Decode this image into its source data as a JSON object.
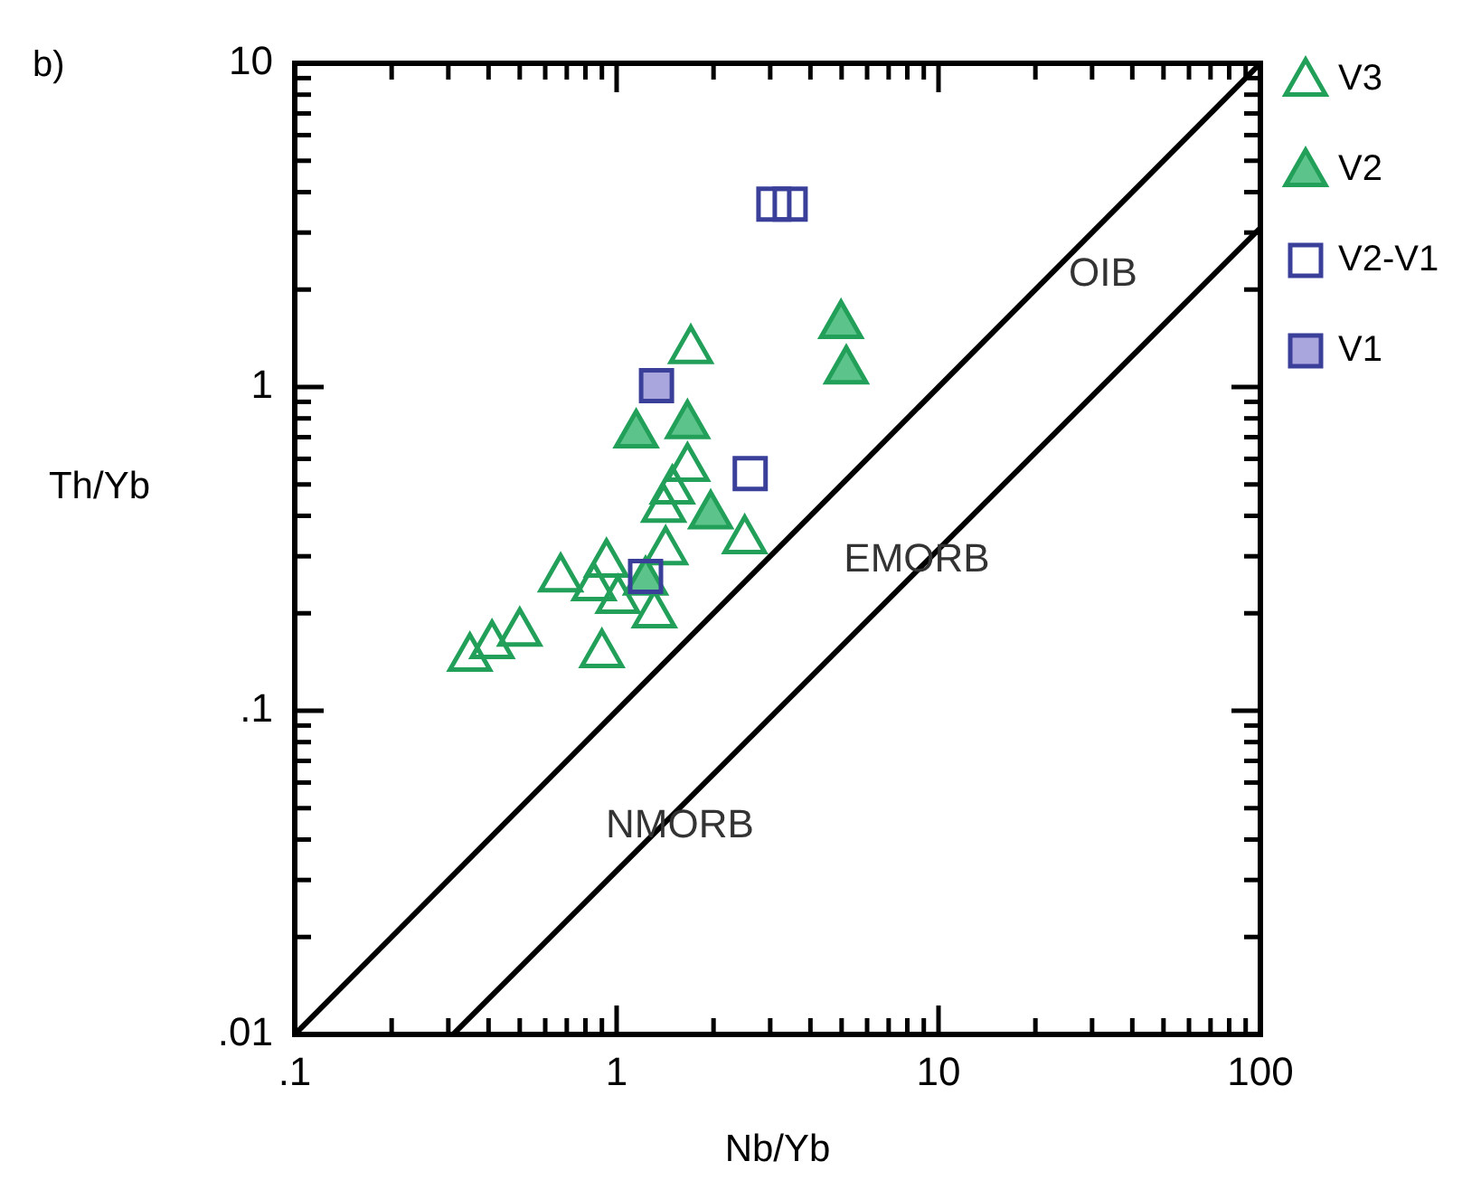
{
  "chart_data": {
    "type": "scatter",
    "xlabel": "Nb/Yb",
    "ylabel": "Th/Yb",
    "log": "xy",
    "xlim": [
      0.1,
      100
    ],
    "ylim": [
      0.01,
      10
    ],
    "xticks": [
      {
        "value": 0.1,
        "label": ".1"
      },
      {
        "value": 0.2,
        "label": null
      },
      {
        "value": 0.3,
        "label": null
      },
      {
        "value": 0.4,
        "label": null
      },
      {
        "value": 0.5,
        "label": null
      },
      {
        "value": 0.6,
        "label": null
      },
      {
        "value": 0.7,
        "label": null
      },
      {
        "value": 0.8,
        "label": null
      },
      {
        "value": 0.9,
        "label": null
      },
      1,
      {
        "value": 2,
        "label": null
      },
      {
        "value": 3,
        "label": null
      },
      {
        "value": 4,
        "label": null
      },
      {
        "value": 5,
        "label": null
      },
      {
        "value": 6,
        "label": null
      },
      {
        "value": 7,
        "label": null
      },
      {
        "value": 8,
        "label": null
      },
      {
        "value": 9,
        "label": null
      },
      10,
      {
        "value": 20,
        "label": null
      },
      {
        "value": 30,
        "label": null
      },
      {
        "value": 40,
        "label": null
      },
      {
        "value": 50,
        "label": null
      },
      {
        "value": 60,
        "label": null
      },
      {
        "value": 70,
        "label": null
      },
      {
        "value": 80,
        "label": null
      },
      {
        "value": 90,
        "label": null
      },
      100
    ],
    "yticks": [
      {
        "value": 0.01,
        "label": ".01"
      },
      {
        "value": 0.02,
        "label": null
      },
      {
        "value": 0.03,
        "label": null
      },
      {
        "value": 0.04,
        "label": null
      },
      {
        "value": 0.05,
        "label": null
      },
      {
        "value": 0.06,
        "label": null
      },
      {
        "value": 0.07,
        "label": null
      },
      {
        "value": 0.08,
        "label": null
      },
      {
        "value": 0.09,
        "label": null
      },
      {
        "value": 0.1,
        "label": ".1"
      },
      {
        "value": 0.2,
        "label": null
      },
      {
        "value": 0.3,
        "label": null
      },
      {
        "value": 0.4,
        "label": null
      },
      {
        "value": 0.5,
        "label": null
      },
      {
        "value": 0.6,
        "label": null
      },
      {
        "value": 0.7,
        "label": null
      },
      {
        "value": 0.8,
        "label": null
      },
      {
        "value": 0.9,
        "label": null
      },
      1,
      {
        "value": 2,
        "label": null
      },
      {
        "value": 3,
        "label": null
      },
      {
        "value": 4,
        "label": null
      },
      {
        "value": 5,
        "label": null
      },
      {
        "value": 6,
        "label": null
      },
      {
        "value": 7,
        "label": null
      },
      {
        "value": 8,
        "label": null
      },
      {
        "value": 9,
        "label": null
      },
      10
    ],
    "grid": false,
    "legend": "top right",
    "annotations": [
      "b)",
      "OIB",
      "EMORB",
      "NMORB"
    ],
    "series": [
      {
        "name": "V3",
        "type": "scatter",
        "marker": "triangle",
        "color": "#22a05a",
        "x": [
          0.35,
          0.41,
          0.5,
          0.67,
          0.85,
          0.93,
          1.01,
          0.9,
          1.31,
          1.42,
          2.5,
          1.4,
          1.49,
          1.66,
          1.7
        ],
        "values": [
          0.149,
          0.163,
          0.178,
          0.262,
          0.246,
          0.291,
          0.225,
          0.153,
          0.203,
          0.318,
          0.344,
          0.43,
          0.49,
          0.575,
          1.33
        ]
      },
      {
        "name": "V2",
        "type": "scatter",
        "marker": "triangle",
        "color": "#22a05a",
        "colors": [
          "#5cc48a",
          "#5cc48a",
          "#5cc48a",
          "#5cc48a",
          "#5cc48a",
          "#5cc48a"
        ],
        "x": [
          1.15,
          1.66,
          1.96,
          1.23,
          4.98,
          5.17
        ],
        "values": [
          0.73,
          0.78,
          0.41,
          0.256,
          1.59,
          1.15
        ]
      },
      {
        "name": "V2-V1",
        "type": "scatter",
        "marker": "square",
        "color": "#3a3f99",
        "x": [
          3.08,
          3.46,
          2.6,
          1.23
        ],
        "values": [
          3.67,
          3.67,
          0.54,
          0.26
        ]
      },
      {
        "name": "V1",
        "type": "scatter",
        "marker": "square",
        "color": "#3a3f99",
        "colors": [
          "#a9a6dd"
        ],
        "x": [
          1.33
        ],
        "values": [
          1.01
        ]
      },
      {
        "type": "line",
        "color": "#000000",
        "x": [
          0.1,
          100
        ],
        "values": [
          0.01,
          10
        ]
      },
      {
        "type": "line",
        "color": "#000000",
        "x": [
          0.31,
          100
        ],
        "values": [
          0.01,
          3.1
        ]
      }
    ]
  }
}
